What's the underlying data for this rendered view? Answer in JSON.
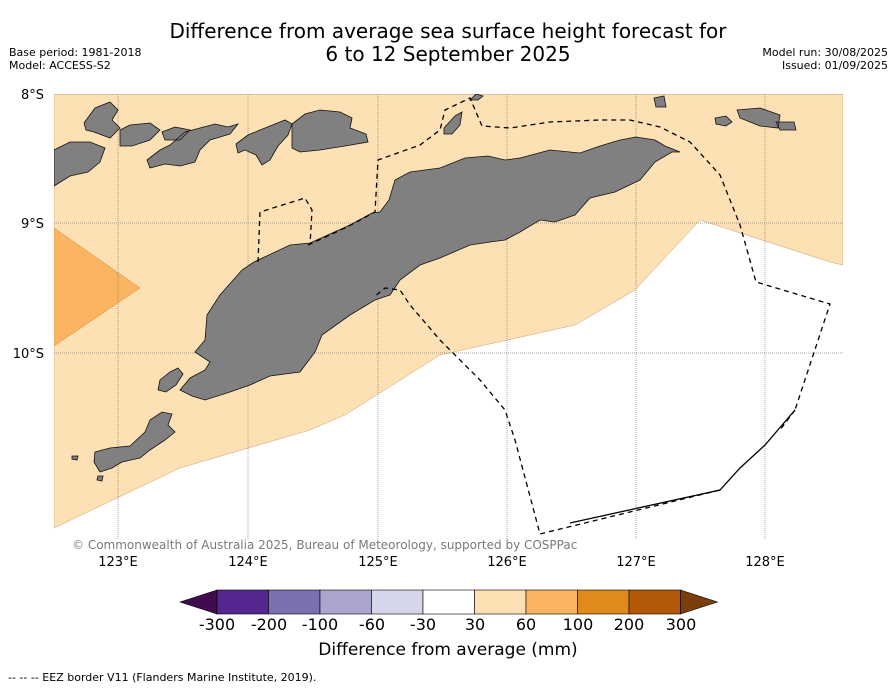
{
  "header": {
    "title_line1": "Difference from average sea surface height forecast for",
    "title_line2": "6 to 12 September 2025",
    "base_period": "Base period: 1981-2018",
    "model": "Model: ACCESS-S2",
    "model_run": "Model run: 30/08/2025",
    "issued": "Issued: 01/09/2025"
  },
  "map": {
    "lat_labels": [
      "8°S",
      "9°S",
      "10°S"
    ],
    "lon_labels": [
      "123°E",
      "124°E",
      "125°E",
      "126°E",
      "127°E",
      "128°E"
    ],
    "land_color": "#808080",
    "copyright": "© Commonwealth of Australia 2025, Bureau of Meteorology, supported by COSPPac"
  },
  "colorbar": {
    "colors": [
      "#3f0d4f",
      "#54278f",
      "#7b6fb0",
      "#aaa4cf",
      "#d6d6eb",
      "#ffffff",
      "#fde0b4",
      "#fbb462",
      "#e08a1c",
      "#b35808",
      "#7a3e0d"
    ],
    "ticks": [
      "-300",
      "-200",
      "-100",
      "-60",
      "-30",
      "30",
      "60",
      "100",
      "200",
      "300"
    ],
    "label": "Difference from average (mm)"
  },
  "footer": {
    "legend": "-- -- -- EEZ border V11 (Flanders Marine Institute, 2019)."
  }
}
